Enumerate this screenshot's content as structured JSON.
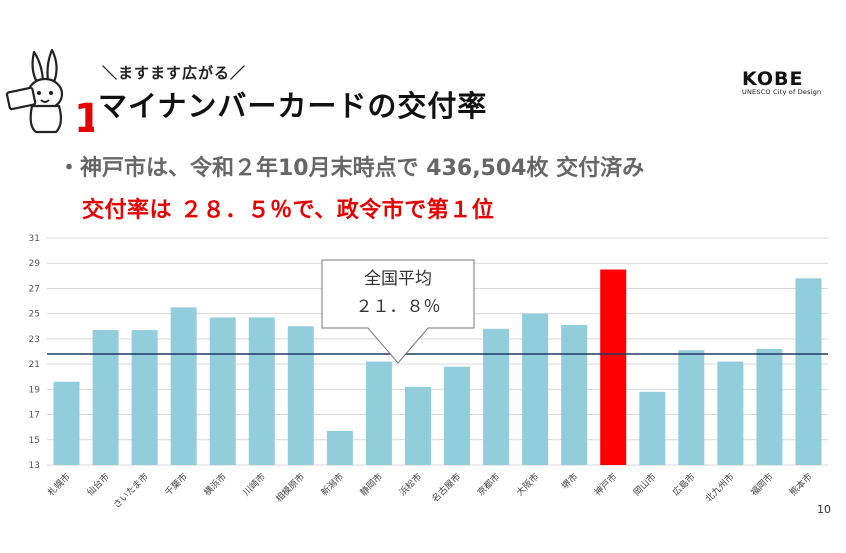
{
  "header": {
    "subtitle": "＼ますます広がる／",
    "title": "マイナンバーカードの交付率",
    "logo_word": "KOBE",
    "logo_sub": "UNESCO City of Design"
  },
  "bullets": {
    "line1": "・神戸市は、令和２年10月末時点で 436,504枚 交付済み",
    "line2": "交付率は ２８．５％で、政令市で第１位"
  },
  "page_number": "10",
  "colors": {
    "bar": "#92cddc",
    "highlight": "#ff0000",
    "average_line": "#1f3864",
    "emphasis_text": "#e60000"
  },
  "chart_data": {
    "type": "bar",
    "categories": [
      "札幌市",
      "仙台市",
      "さいたま市",
      "千葉市",
      "横浜市",
      "川崎市",
      "相模原市",
      "新潟市",
      "静岡市",
      "浜松市",
      "名古屋市",
      "京都市",
      "大阪市",
      "堺市",
      "神戸市",
      "岡山市",
      "広島市",
      "北九州市",
      "福岡市",
      "熊本市"
    ],
    "values": [
      19.6,
      23.7,
      23.7,
      25.5,
      24.7,
      24.7,
      24.0,
      15.7,
      21.2,
      19.2,
      20.8,
      23.8,
      25.0,
      24.1,
      28.5,
      18.8,
      22.1,
      21.2,
      22.2,
      27.8
    ],
    "highlight_index": 14,
    "average": {
      "value": 21.8,
      "label_line1": "全国平均",
      "label_line2": "２１．８％"
    },
    "ylim": [
      13,
      31
    ],
    "yticks": [
      13,
      15,
      17,
      19,
      21,
      23,
      25,
      27,
      29,
      31
    ],
    "grid": true
  }
}
